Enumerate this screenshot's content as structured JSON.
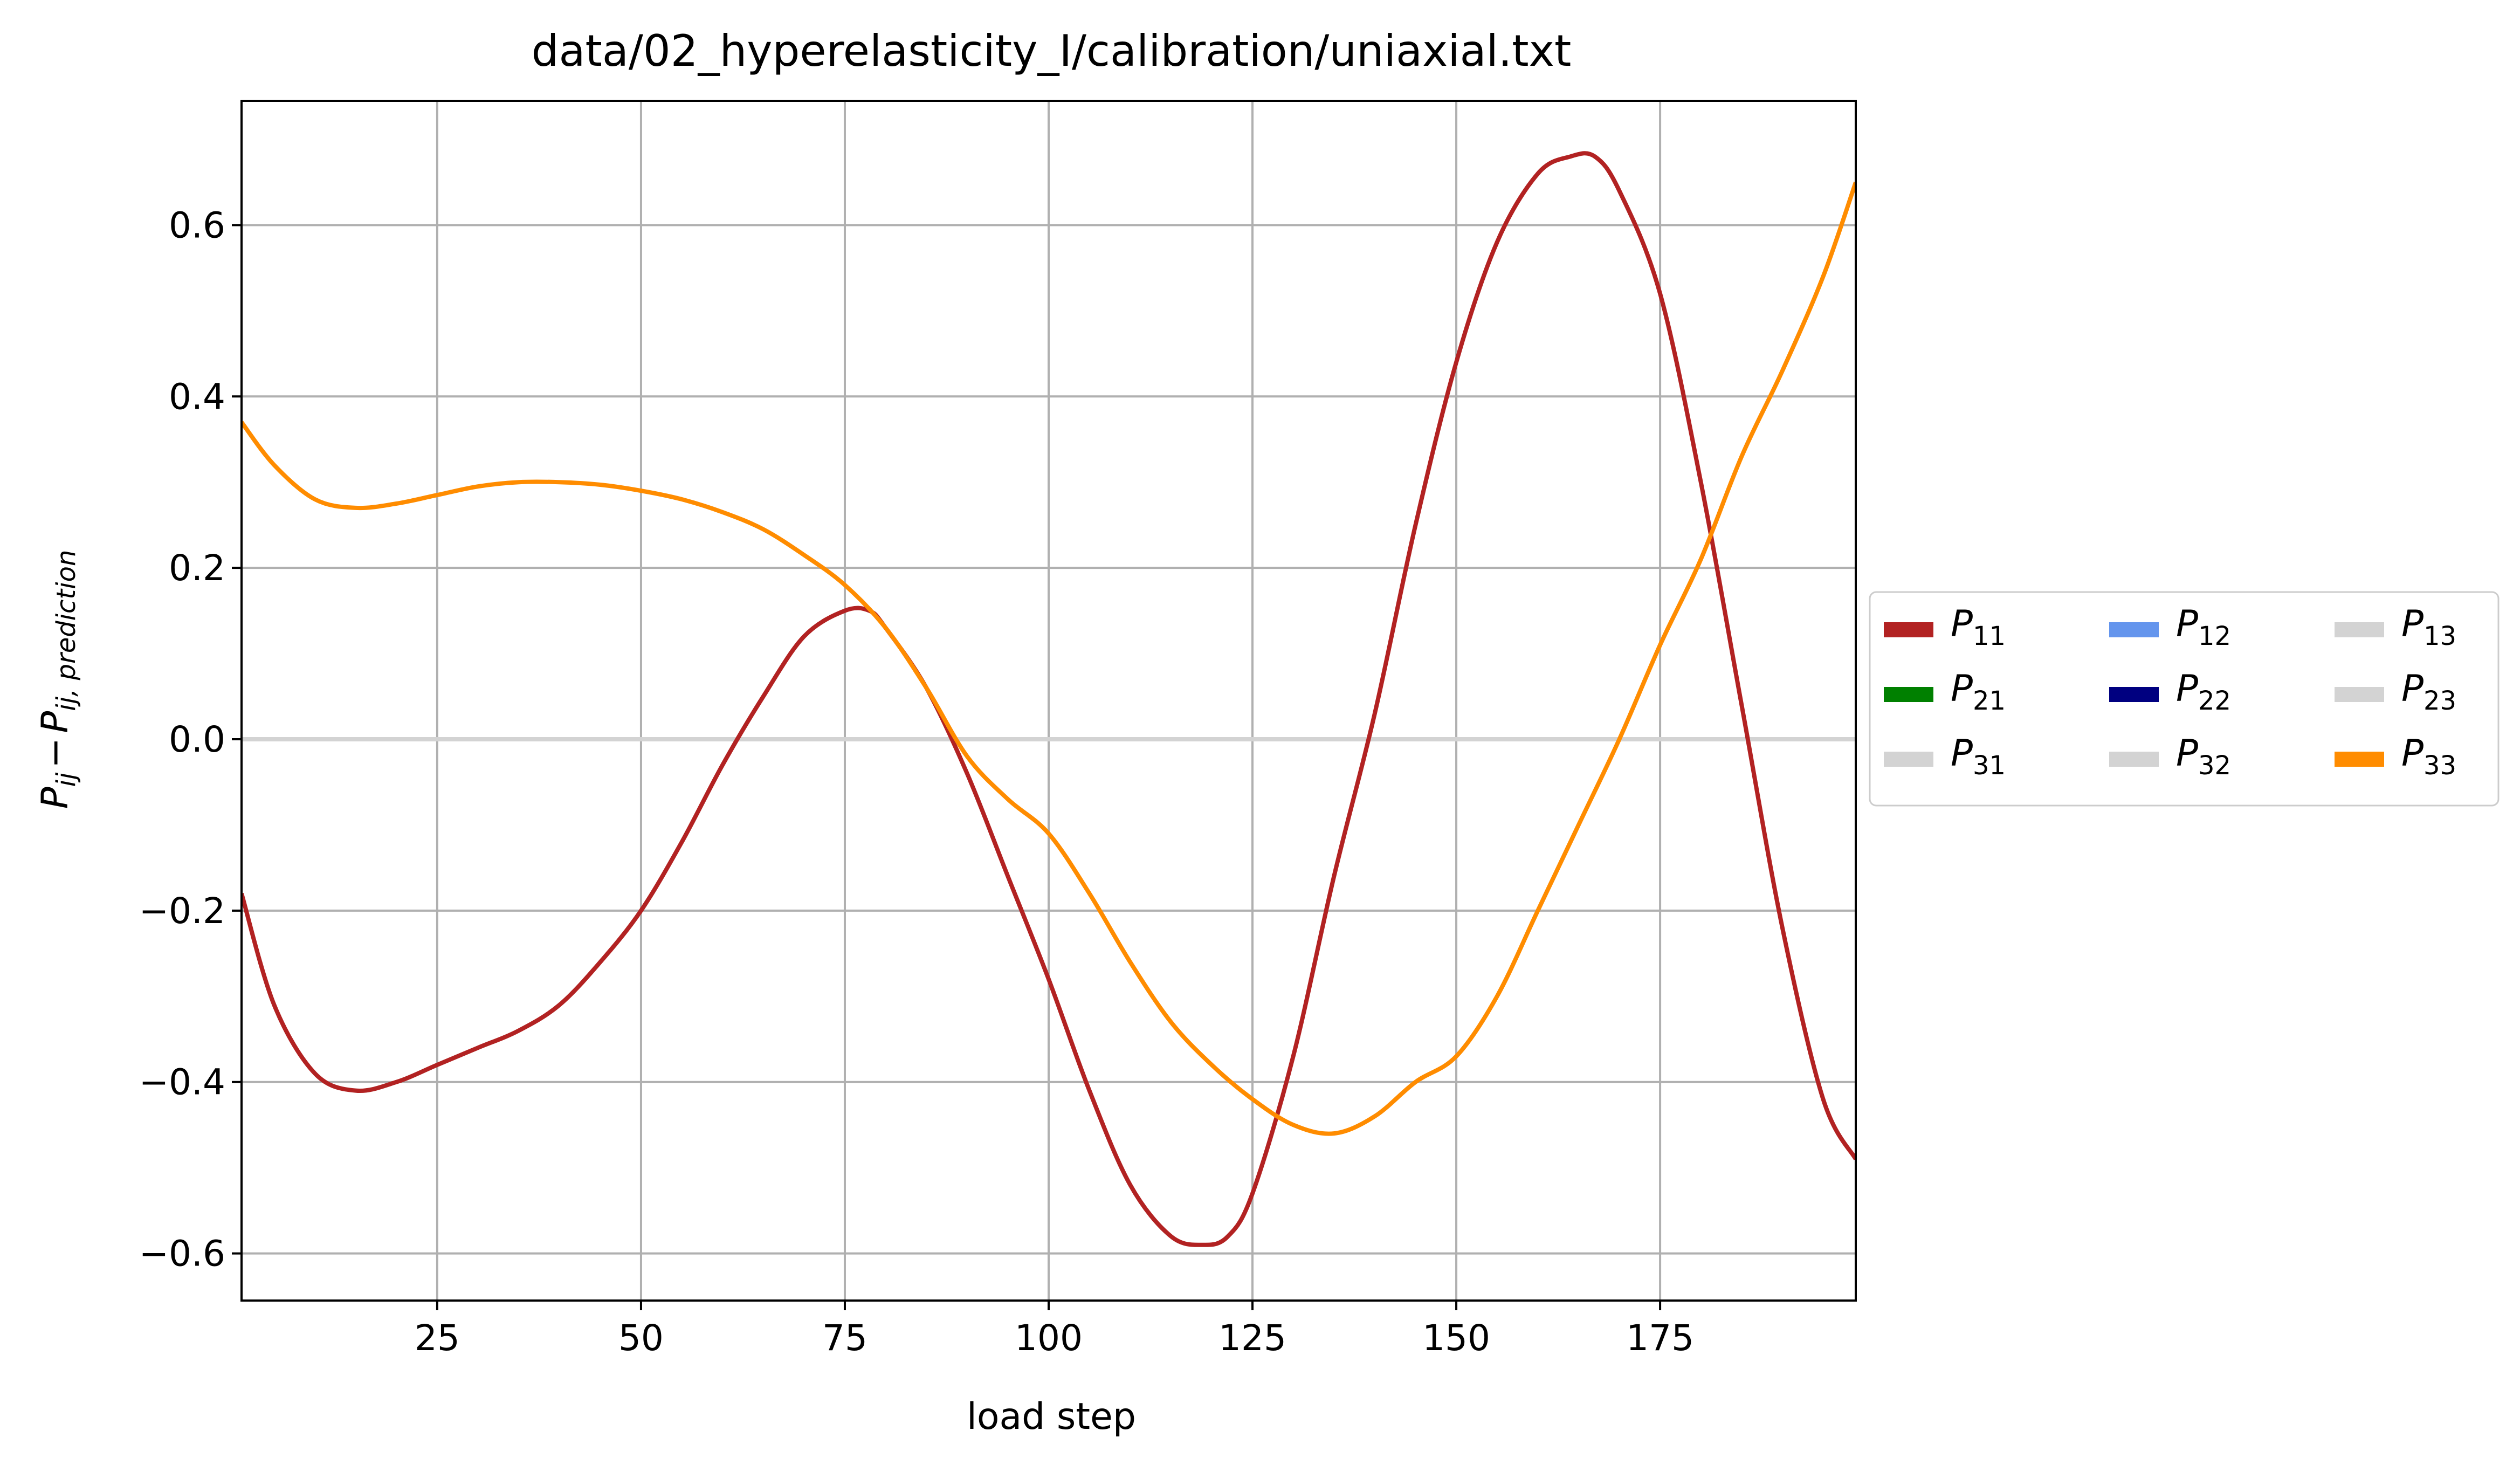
{
  "chart_data": {
    "type": "line",
    "title": "data/02_hyperelasticity_I/calibration/uniaxial.txt",
    "xlabel": "load step",
    "ylabel_main": "P",
    "ylabel_sub1": "ij",
    "ylabel_minus": "−",
    "ylabel_sub2": "ij, prediction",
    "xlim": [
      1,
      199
    ],
    "ylim": [
      -0.655,
      0.745
    ],
    "grid": true,
    "legend_placement": "center-right outside",
    "x_ticks": [
      25,
      50,
      75,
      100,
      125,
      150,
      175
    ],
    "x_tick_labels": [
      "25",
      "50",
      "75",
      "100",
      "125",
      "150",
      "175"
    ],
    "y_ticks": [
      -0.6,
      -0.4,
      -0.2,
      0.0,
      0.2,
      0.4,
      0.6
    ],
    "y_tick_labels": [
      "−0.6",
      "−0.4",
      "−0.2",
      "0.0",
      "0.2",
      "0.4",
      "0.6"
    ],
    "series": [
      {
        "name_main": "P",
        "name_sub": "31",
        "color": "#d3d3d3",
        "points": [
          [
            1,
            0
          ],
          [
            199,
            0
          ]
        ]
      },
      {
        "name_main": "P",
        "name_sub": "32",
        "color": "#d3d3d3",
        "points": [
          [
            1,
            0
          ],
          [
            199,
            0
          ]
        ]
      },
      {
        "name_main": "P",
        "name_sub": "13",
        "color": "#d3d3d3",
        "points": [
          [
            1,
            0
          ],
          [
            199,
            0
          ]
        ]
      },
      {
        "name_main": "P",
        "name_sub": "23",
        "color": "#d3d3d3",
        "points": [
          [
            1,
            0
          ],
          [
            199,
            0
          ]
        ]
      },
      {
        "name_main": "P",
        "name_sub": "21",
        "color": "#008000",
        "points": []
      },
      {
        "name_main": "P",
        "name_sub": "12",
        "color": "#6495ed",
        "points": []
      },
      {
        "name_main": "P",
        "name_sub": "22",
        "color": "#000080",
        "points": []
      },
      {
        "name_main": "P",
        "name_sub": "11",
        "color": "#b22222",
        "points": [
          [
            1,
            -0.18
          ],
          [
            5,
            -0.31
          ],
          [
            10,
            -0.39
          ],
          [
            15,
            -0.41
          ],
          [
            20,
            -0.4
          ],
          [
            25,
            -0.38
          ],
          [
            30,
            -0.36
          ],
          [
            35,
            -0.34
          ],
          [
            40,
            -0.31
          ],
          [
            45,
            -0.26
          ],
          [
            50,
            -0.2
          ],
          [
            55,
            -0.12
          ],
          [
            60,
            -0.03
          ],
          [
            65,
            0.05
          ],
          [
            70,
            0.12
          ],
          [
            75,
            0.15
          ],
          [
            78,
            0.15
          ],
          [
            80,
            0.13
          ],
          [
            85,
            0.06
          ],
          [
            90,
            -0.04
          ],
          [
            95,
            -0.16
          ],
          [
            100,
            -0.28
          ],
          [
            105,
            -0.41
          ],
          [
            110,
            -0.52
          ],
          [
            115,
            -0.58
          ],
          [
            119,
            -0.59
          ],
          [
            122,
            -0.58
          ],
          [
            125,
            -0.53
          ],
          [
            130,
            -0.37
          ],
          [
            135,
            -0.16
          ],
          [
            140,
            0.03
          ],
          [
            145,
            0.25
          ],
          [
            150,
            0.44
          ],
          [
            155,
            0.58
          ],
          [
            160,
            0.66
          ],
          [
            164,
            0.68
          ],
          [
            167,
            0.68
          ],
          [
            170,
            0.64
          ],
          [
            175,
            0.52
          ],
          [
            180,
            0.3
          ],
          [
            185,
            0.04
          ],
          [
            190,
            -0.22
          ],
          [
            195,
            -0.42
          ],
          [
            199,
            -0.49
          ]
        ]
      },
      {
        "name_main": "P",
        "name_sub": "33",
        "color": "#ff8c00",
        "points": [
          [
            1,
            0.37
          ],
          [
            5,
            0.32
          ],
          [
            10,
            0.28
          ],
          [
            15,
            0.27
          ],
          [
            20,
            0.275
          ],
          [
            25,
            0.285
          ],
          [
            30,
            0.295
          ],
          [
            35,
            0.3
          ],
          [
            40,
            0.3
          ],
          [
            45,
            0.297
          ],
          [
            50,
            0.29
          ],
          [
            55,
            0.28
          ],
          [
            60,
            0.265
          ],
          [
            65,
            0.245
          ],
          [
            70,
            0.215
          ],
          [
            75,
            0.18
          ],
          [
            80,
            0.13
          ],
          [
            85,
            0.06
          ],
          [
            90,
            -0.02
          ],
          [
            95,
            -0.07
          ],
          [
            100,
            -0.11
          ],
          [
            105,
            -0.18
          ],
          [
            110,
            -0.26
          ],
          [
            115,
            -0.33
          ],
          [
            120,
            -0.38
          ],
          [
            125,
            -0.42
          ],
          [
            130,
            -0.45
          ],
          [
            135,
            -0.46
          ],
          [
            140,
            -0.44
          ],
          [
            145,
            -0.4
          ],
          [
            150,
            -0.37
          ],
          [
            155,
            -0.3
          ],
          [
            160,
            -0.2
          ],
          [
            165,
            -0.1
          ],
          [
            170,
            0.0
          ],
          [
            175,
            0.11
          ],
          [
            180,
            0.21
          ],
          [
            185,
            0.33
          ],
          [
            190,
            0.43
          ],
          [
            195,
            0.54
          ],
          [
            199,
            0.65
          ]
        ]
      }
    ],
    "legend": [
      {
        "name_main": "P",
        "name_sub": "11",
        "color": "#b22222"
      },
      {
        "name_main": "P",
        "name_sub": "21",
        "color": "#008000"
      },
      {
        "name_main": "P",
        "name_sub": "31",
        "color": "#d3d3d3"
      },
      {
        "name_main": "P",
        "name_sub": "12",
        "color": "#6495ed"
      },
      {
        "name_main": "P",
        "name_sub": "22",
        "color": "#000080"
      },
      {
        "name_main": "P",
        "name_sub": "32",
        "color": "#d3d3d3"
      },
      {
        "name_main": "P",
        "name_sub": "13",
        "color": "#d3d3d3"
      },
      {
        "name_main": "P",
        "name_sub": "23",
        "color": "#d3d3d3"
      },
      {
        "name_main": "P",
        "name_sub": "33",
        "color": "#ff8c00"
      }
    ]
  }
}
